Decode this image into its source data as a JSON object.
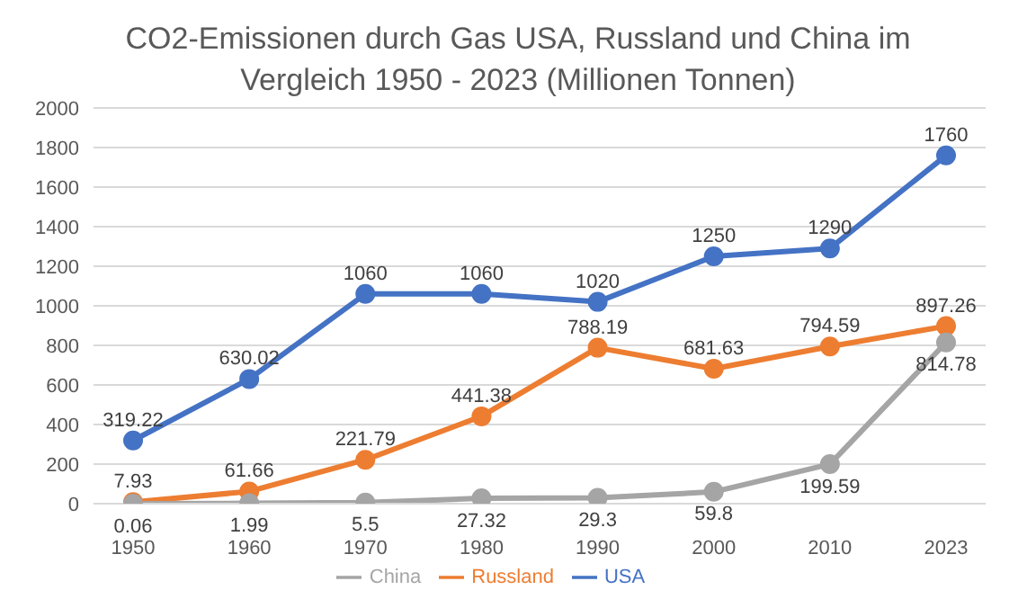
{
  "chart_data": {
    "type": "line",
    "title": "CO2-Emissionen durch Gas USA, Russland und China im Vergleich 1950 - 2023 (Millionen Tonnen)",
    "categories": [
      "1950",
      "1960",
      "1970",
      "1980",
      "1990",
      "2000",
      "2010",
      "2023"
    ],
    "series": [
      {
        "name": "USA",
        "color": "#4472c4",
        "values": [
          319.22,
          630.02,
          1060,
          1060,
          1020,
          1250,
          1290,
          1760
        ]
      },
      {
        "name": "Russland",
        "color": "#ed7d31",
        "values": [
          7.93,
          61.66,
          221.79,
          441.38,
          788.19,
          681.63,
          794.59,
          897.26
        ]
      },
      {
        "name": "China",
        "color": "#a5a5a5",
        "values": [
          0.06,
          1.99,
          5.5,
          27.32,
          29.3,
          59.8,
          199.59,
          814.78
        ]
      }
    ],
    "ylim": [
      0,
      2000
    ],
    "yticks": [
      0,
      200,
      400,
      600,
      800,
      1000,
      1200,
      1400,
      1600,
      1800,
      2000
    ],
    "grid": "y",
    "legend": "bottom",
    "marker": "circle",
    "line_style": "solid",
    "data_labels": true
  }
}
